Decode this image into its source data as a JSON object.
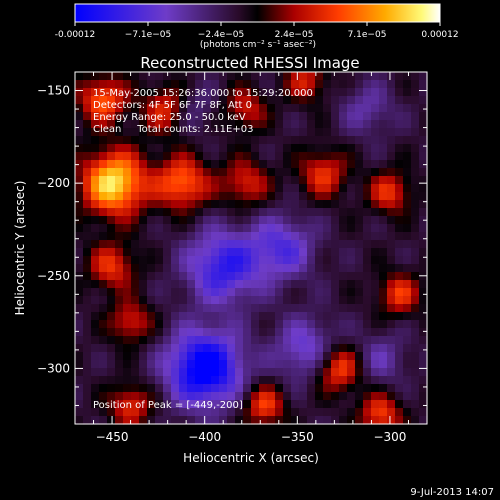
{
  "colorbar": {
    "labels": [
      "-0.00012",
      "−7.1e−05",
      "−2.4e−05",
      "2.4e−05",
      "7.1e−05",
      "0.00012"
    ],
    "units": "(photons cm⁻² s⁻¹ asec⁻²)"
  },
  "chart_data": {
    "type": "heatmap",
    "title": "Reconstructed RHESSI Image",
    "xlabel": "Heliocentric X (arcsec)",
    "ylabel": "Heliocentric Y (arcsec)",
    "xlim": [
      -470,
      -280
    ],
    "ylim": [
      -330,
      -140
    ],
    "xticks": [
      -450,
      -400,
      -350,
      -300
    ],
    "yticks": [
      -150,
      -200,
      -250,
      -300
    ],
    "colorscale_range": [
      -0.00012,
      0.00012
    ],
    "annotations": [
      "15-May-2005 15:26:36.000 to 15:29:20.000",
      "Detectors: 4F 5F 6F 7F 8F, Att 0",
      "Energy Range: 25.0 - 50.0 keV",
      "Clean     Total counts: 2.11E+03"
    ],
    "peak_label": "Position of Peak = [-449,-200]",
    "peak": [
      -449,
      -200
    ],
    "sources": [
      {
        "x": -449,
        "y": -200,
        "amp": 0.00012,
        "s": 12
      },
      {
        "x": -455,
        "y": -155,
        "amp": 7.5e-05,
        "s": 9
      },
      {
        "x": -420,
        "y": -160,
        "amp": 6.5e-05,
        "s": 9
      },
      {
        "x": -412,
        "y": -200,
        "amp": 8e-05,
        "s": 10
      },
      {
        "x": -378,
        "y": -160,
        "amp": 5e-05,
        "s": 8
      },
      {
        "x": -378,
        "y": -200,
        "amp": 5.5e-05,
        "s": 9
      },
      {
        "x": -336,
        "y": -195,
        "amp": 6e-05,
        "s": 9
      },
      {
        "x": -300,
        "y": -205,
        "amp": 6e-05,
        "s": 8
      },
      {
        "x": -295,
        "y": -260,
        "amp": 6e-05,
        "s": 8
      },
      {
        "x": -328,
        "y": -300,
        "amp": 7.5e-05,
        "s": 9
      },
      {
        "x": -305,
        "y": -325,
        "amp": 6.5e-05,
        "s": 8
      },
      {
        "x": -450,
        "y": -245,
        "amp": 6e-05,
        "s": 9
      },
      {
        "x": -440,
        "y": -275,
        "amp": 5.5e-05,
        "s": 8
      },
      {
        "x": -440,
        "y": -320,
        "amp": 6e-05,
        "s": 8
      },
      {
        "x": -368,
        "y": -320,
        "amp": 6.5e-05,
        "s": 8
      },
      {
        "x": -345,
        "y": -145,
        "amp": 5e-05,
        "s": 8
      },
      {
        "x": -400,
        "y": -300,
        "amp": -0.00012,
        "s": 14
      },
      {
        "x": -390,
        "y": -245,
        "amp": -8e-05,
        "s": 14
      },
      {
        "x": -358,
        "y": -235,
        "amp": -6e-05,
        "s": 12
      },
      {
        "x": -345,
        "y": -290,
        "amp": -5.5e-05,
        "s": 12
      },
      {
        "x": -408,
        "y": -160,
        "amp": -3.5e-05,
        "s": 9
      },
      {
        "x": -312,
        "y": -160,
        "amp": -3.5e-05,
        "s": 10
      },
      {
        "x": -305,
        "y": -295,
        "amp": -3.5e-05,
        "s": 10
      }
    ]
  },
  "footer": {
    "timestamp": "9-Jul-2013 14:07"
  }
}
